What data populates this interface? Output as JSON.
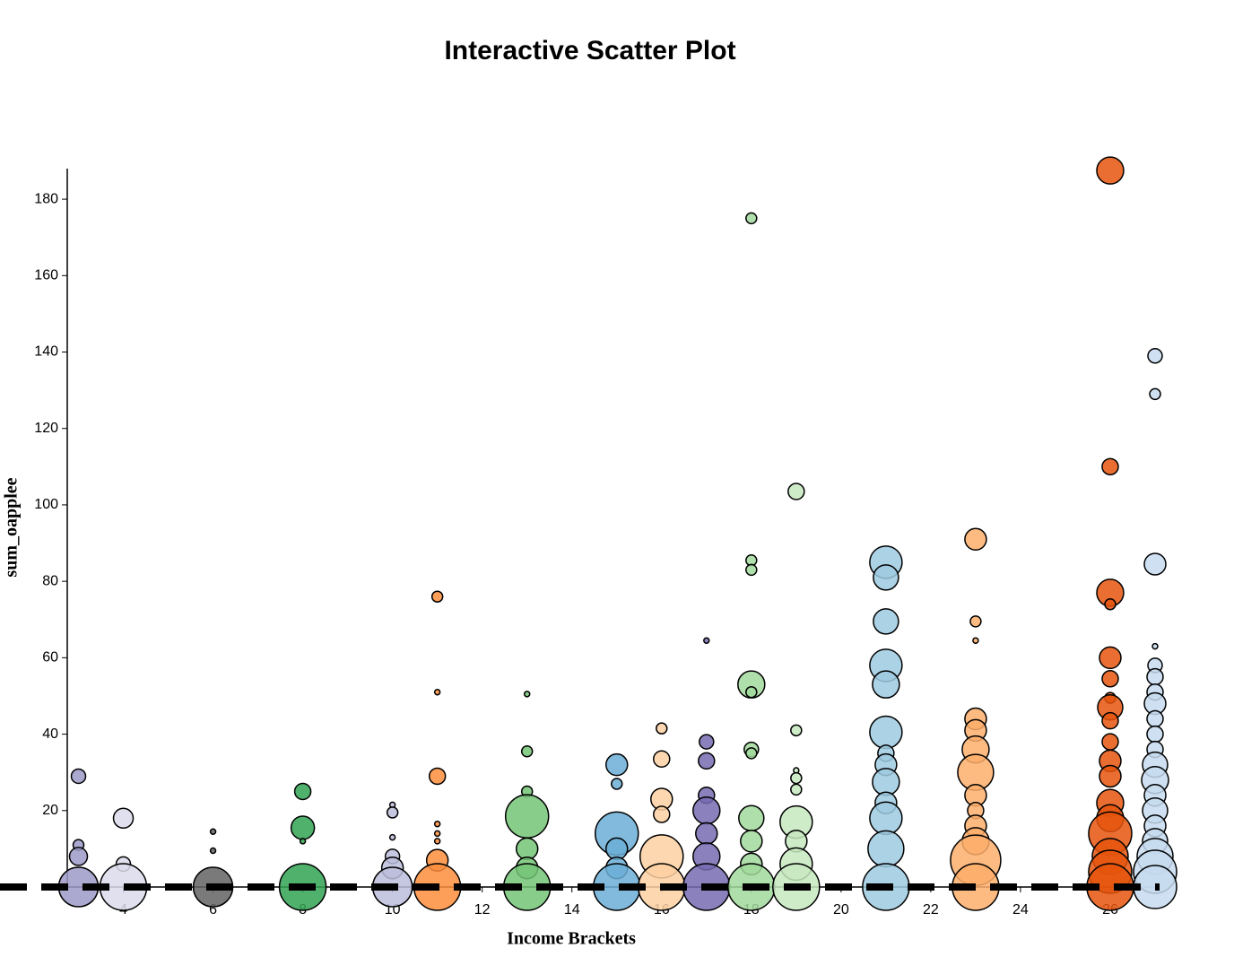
{
  "chart_data": {
    "type": "scatter",
    "title": "Interactive Scatter Plot",
    "x_label": "Income Brackets",
    "y_label": "sum_oapplee",
    "xlim": [
      2.75,
      27.5
    ],
    "xticks": [
      4,
      6,
      8,
      10,
      12,
      14,
      16,
      18,
      20,
      22,
      24,
      26
    ],
    "ylim": [
      0,
      188
    ],
    "yticks": [
      20,
      40,
      60,
      80,
      100,
      120,
      140,
      160,
      180
    ],
    "hline": 0,
    "series": [
      {
        "x": 3,
        "color": "#9e9ac8",
        "values": [
          29,
          11,
          8,
          0
        ],
        "sizes": [
          8,
          6,
          10,
          22
        ]
      },
      {
        "x": 4,
        "color": "#dadaeb",
        "values": [
          18,
          6,
          0
        ],
        "sizes": [
          11,
          8,
          26
        ]
      },
      {
        "x": 6,
        "color": "#636363",
        "values": [
          14.5,
          9.5,
          0
        ],
        "sizes": [
          3,
          3,
          22
        ]
      },
      {
        "x": 8,
        "color": "#31a354",
        "values": [
          25,
          15.5,
          12,
          0
        ],
        "sizes": [
          9,
          13,
          3,
          26
        ]
      },
      {
        "x": 10,
        "color": "#bcbddc",
        "values": [
          21.5,
          19.5,
          13,
          8,
          5,
          0
        ],
        "sizes": [
          3,
          6,
          3,
          8,
          12,
          22
        ]
      },
      {
        "x": 11,
        "color": "#fd8d3c",
        "values": [
          76,
          51,
          29,
          16.5,
          14,
          12,
          7,
          0
        ],
        "sizes": [
          6,
          3,
          9,
          3,
          3,
          3,
          12,
          26
        ]
      },
      {
        "x": 13,
        "color": "#74c476",
        "values": [
          50.5,
          35.5,
          25,
          18.5,
          10,
          5,
          0
        ],
        "sizes": [
          3,
          6,
          6,
          24,
          12,
          12,
          26
        ]
      },
      {
        "x": 15,
        "color": "#6baed6",
        "values": [
          32,
          27,
          14,
          10,
          5,
          0
        ],
        "sizes": [
          12,
          6,
          24,
          12,
          12,
          26
        ]
      },
      {
        "x": 16,
        "color": "#fdd0a2",
        "values": [
          41.5,
          33.5,
          23,
          19,
          8,
          0
        ],
        "sizes": [
          6,
          9,
          12,
          9,
          24,
          26
        ]
      },
      {
        "x": 17,
        "color": "#756bb1",
        "values": [
          64.5,
          38,
          33,
          24,
          20,
          14,
          8,
          0
        ],
        "sizes": [
          3,
          8,
          9,
          9,
          15,
          12,
          15,
          26
        ]
      },
      {
        "x": 18,
        "color": "#a1d99b",
        "values": [
          175,
          85.5,
          83,
          53,
          51,
          36,
          35,
          18,
          12,
          6,
          0
        ],
        "sizes": [
          6,
          6,
          6,
          15,
          6,
          8,
          6,
          14,
          12,
          12,
          26
        ]
      },
      {
        "x": 19,
        "color": "#c7e9c0",
        "values": [
          103.5,
          41,
          30.5,
          28.5,
          25.5,
          17,
          12,
          6,
          0
        ],
        "sizes": [
          9,
          6,
          3,
          6,
          6,
          18,
          12,
          18,
          26
        ]
      },
      {
        "x": 21,
        "color": "#9ecae1",
        "values": [
          85,
          81,
          69.5,
          58,
          53,
          40.5,
          35,
          32,
          27.5,
          22,
          18,
          10,
          0
        ],
        "sizes": [
          18,
          14,
          14,
          18,
          15,
          18,
          9,
          12,
          15,
          12,
          18,
          20,
          26
        ]
      },
      {
        "x": 23,
        "color": "#fdae6b",
        "values": [
          91,
          69.5,
          64.5,
          44,
          41,
          36,
          30,
          24,
          20,
          16,
          12,
          7,
          0
        ],
        "sizes": [
          12,
          6,
          3,
          12,
          12,
          15,
          20,
          12,
          9,
          12,
          15,
          28,
          26
        ]
      },
      {
        "x": 26,
        "color": "#e6550d",
        "values": [
          187.5,
          110,
          77,
          74,
          60,
          54.5,
          49.5,
          47,
          43.5,
          38,
          33,
          29,
          22,
          18,
          14,
          8,
          4,
          0
        ],
        "sizes": [
          15,
          9,
          15,
          6,
          12,
          9,
          6,
          14,
          9,
          9,
          12,
          12,
          15,
          15,
          24,
          20,
          24,
          26
        ]
      },
      {
        "x": 27,
        "color": "#c6dbef",
        "values": [
          139,
          129,
          84.5,
          63,
          58,
          55,
          51,
          48,
          44,
          40,
          36,
          32,
          28,
          24,
          20,
          16,
          12,
          8,
          4,
          0
        ],
        "sizes": [
          8,
          6,
          12,
          3,
          8,
          9,
          9,
          12,
          9,
          9,
          9,
          14,
          15,
          12,
          14,
          12,
          14,
          20,
          24,
          24
        ]
      }
    ]
  }
}
